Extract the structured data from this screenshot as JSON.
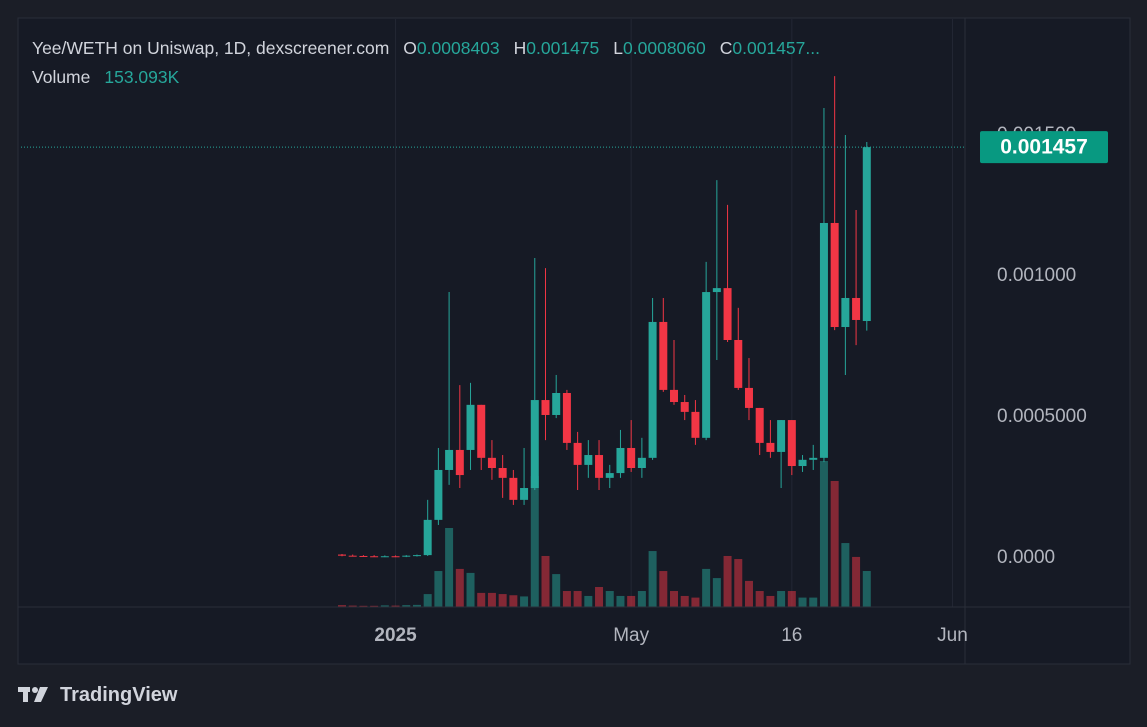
{
  "header": {
    "title": "Yee/WETH on Uniswap, 1D, dexscreener.com",
    "ohlc": [
      {
        "key": "O",
        "value": "0.0008403"
      },
      {
        "key": "H",
        "value": "0.001475"
      },
      {
        "key": "L",
        "value": "0.0008060"
      },
      {
        "key": "C",
        "value": "0.001457..."
      }
    ],
    "volume_label": "Volume",
    "volume_value": "153.093K"
  },
  "brand": "TradingView",
  "chart_data": {
    "type": "candlestick",
    "categories": [
      null,
      null,
      null,
      null,
      null,
      "2025",
      null,
      null,
      null,
      null,
      null,
      null,
      null,
      null,
      null,
      null,
      null,
      null,
      null,
      null,
      null,
      null,
      null,
      null,
      null,
      null,
      null,
      "May",
      null,
      null,
      null,
      null,
      null,
      null,
      null,
      null,
      null,
      null,
      null,
      null,
      null,
      null,
      "16",
      null,
      null,
      null,
      null,
      null,
      null,
      null,
      null,
      null,
      null,
      null,
      null,
      null,
      null,
      "Jun"
    ],
    "open": [
      1.2e-05,
      8e-06,
      7e-06,
      6e-06,
      5e-06,
      6e-06,
      5e-06,
      8e-06,
      1e-05,
      0.000135,
      0.000312,
      0.000383,
      0.000383,
      0.000543,
      0.000355,
      0.000319,
      0.000284,
      0.000206,
      0.000248,
      0.00056,
      0.000507,
      0.000585,
      0.000408,
      0.00033,
      0.000365,
      0.000284,
      0.000301,
      0.00039,
      0.000319,
      0.000355,
      0.000837,
      0.000596,
      0.000553,
      0.000518,
      0.000426,
      0.000943,
      0.000957,
      0.000773,
      0.000603,
      0.000532,
      0.000408,
      0.000376,
      0.000489,
      0.000326,
      0.000348,
      0.000355,
      0.001188,
      0.000819,
      0.000922,
      0.0008403,
      null,
      null,
      null,
      null,
      null,
      null,
      null,
      null
    ],
    "high": [
      1.4e-05,
      1.2e-05,
      1e-05,
      1e-05,
      9e-06,
      9e-06,
      1e-05,
      1.2e-05,
      0.000206,
      0.00039,
      0.000943,
      0.000613,
      0.000621,
      0.000543,
      0.000418,
      0.000365,
      0.000312,
      0.00039,
      0.001064,
      0.001028,
      0.000649,
      0.000596,
      0.000447,
      0.000418,
      0.000418,
      0.00033,
      0.000454,
      0.000489,
      0.000426,
      0.000922,
      0.000922,
      0.000773,
      0.000578,
      0.00056,
      0.00105,
      0.00134,
      0.001252,
      0.000887,
      0.000709,
      0.000532,
      0.000489,
      0.000489,
      0.000489,
      0.000365,
      0.000401,
      0.001596,
      0.001709,
      0.0015,
      0.001234,
      0.001475,
      null,
      null,
      null,
      null,
      null,
      null,
      null,
      null
    ],
    "low": [
      6e-06,
      5e-06,
      4e-06,
      4e-06,
      3e-06,
      3e-06,
      3e-06,
      5e-06,
      7e-06,
      0.000117,
      0.000259,
      0.000248,
      0.000312,
      0.000312,
      0.000277,
      0.000213,
      0.000188,
      0.000188,
      0.000241,
      0.000418,
      0.000496,
      0.000383,
      0.000241,
      0.000284,
      0.000241,
      0.000248,
      0.000284,
      0.000305,
      0.000284,
      0.000348,
      0.000589,
      0.000543,
      0.000489,
      0.000401,
      0.000418,
      0.000702,
      0.000766,
      0.000596,
      0.000489,
      0.000365,
      0.000355,
      0.000248,
      0.000294,
      0.000305,
      0.000312,
      0.00034,
      0.000808,
      0.000649,
      0.000755,
      0.000806,
      null,
      null,
      null,
      null,
      null,
      null,
      null,
      null
    ],
    "close": [
      8e-06,
      7e-06,
      6e-06,
      5e-06,
      6e-06,
      5e-06,
      8e-06,
      1e-05,
      0.000135,
      0.000312,
      0.000383,
      0.000294,
      0.000543,
      0.000355,
      0.000319,
      0.000284,
      0.000206,
      0.000248,
      0.00056,
      0.000507,
      0.000585,
      0.000408,
      0.00033,
      0.000365,
      0.000284,
      0.000301,
      0.00039,
      0.000319,
      0.000355,
      0.000837,
      0.000596,
      0.000553,
      0.000518,
      0.000426,
      0.000943,
      0.000957,
      0.000773,
      0.000603,
      0.000532,
      0.000408,
      0.000376,
      0.000489,
      0.000326,
      0.000348,
      0.000355,
      0.001188,
      0.000819,
      0.000922,
      0.000844,
      0.001457,
      null,
      null,
      null,
      null,
      null,
      null,
      null,
      null
    ],
    "volume": [
      8000,
      6000,
      5000,
      5000,
      7000,
      6000,
      8000,
      9000,
      55000,
      153000,
      336000,
      162000,
      145000,
      60000,
      60000,
      55000,
      50000,
      45000,
      557000,
      217000,
      140000,
      68000,
      68000,
      47000,
      85000,
      68000,
      47000,
      47000,
      68000,
      238000,
      153000,
      68000,
      47000,
      40000,
      162000,
      123000,
      217000,
      204000,
      111000,
      68000,
      47000,
      68000,
      68000,
      40000,
      40000,
      621000,
      536000,
      272000,
      213000,
      153093,
      null,
      null,
      null,
      null,
      null,
      null,
      null,
      null
    ],
    "ylim": [
      -0.000174,
      0.001915
    ],
    "yticks": [
      {
        "value": 0,
        "label": "0.0000"
      },
      {
        "value": 0.0005,
        "label": "0.0005000"
      },
      {
        "value": 0.001,
        "label": "0.001000"
      },
      {
        "value": 0.0015,
        "label": "0.001500"
      }
    ],
    "last_price_label": "0.001457",
    "up_color": "#26a69a",
    "down_color": "#f23645",
    "grid": true
  }
}
